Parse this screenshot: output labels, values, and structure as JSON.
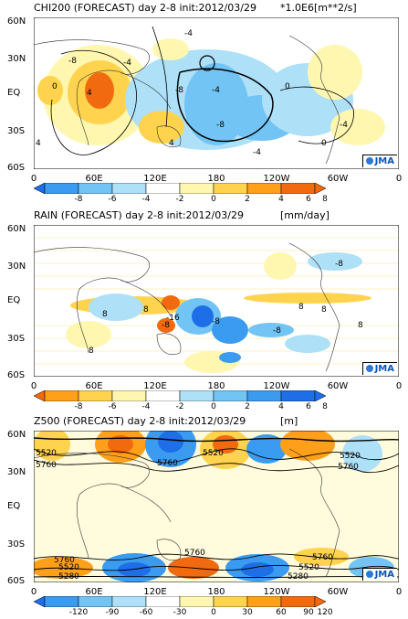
{
  "panels": [
    {
      "title": "CHI200 (FORECAST) day 2-8 init:2012/03/29",
      "units": "*1.0E6[m**2/s]",
      "lat_labels": [
        "60N",
        "30N",
        "EQ",
        "30S",
        "60S"
      ],
      "lon_labels": [
        "0",
        "60E",
        "120E",
        "180",
        "120W",
        "60W",
        "0"
      ],
      "legend_values": [
        "-8",
        "-6",
        "-4",
        "-2",
        "0",
        "2",
        "4",
        "6",
        "8"
      ],
      "legend_colors": [
        "#1e6ee8",
        "#3a9bf0",
        "#72c4f5",
        "#aee0f7",
        "#ffffff",
        "#fff7b0",
        "#ffd34d",
        "#ff9f1a",
        "#f26a0f"
      ],
      "contour_labels": [
        "-8",
        "4",
        "-4",
        "0",
        "-8",
        "-4",
        "4",
        "-8",
        "-4",
        "0",
        "-4",
        "0",
        "4",
        "-4"
      ],
      "logo": "JMA"
    },
    {
      "title": "RAIN (FORECAST) day 2-8 init:2012/03/29",
      "units": "[mm/day]",
      "lat_labels": [
        "60N",
        "30N",
        "EQ",
        "30S",
        "60S"
      ],
      "lon_labels": [
        "0",
        "60E",
        "120E",
        "180",
        "120W",
        "60W",
        "0"
      ],
      "legend_values": [
        "-8",
        "-6",
        "-4",
        "-2",
        "0",
        "2",
        "4",
        "6",
        "8"
      ],
      "legend_colors": [
        "#f26a0f",
        "#ff9f1a",
        "#ffd34d",
        "#fff7b0",
        "#ffffff",
        "#aee0f7",
        "#72c4f5",
        "#3a9bf0",
        "#1e6ee8"
      ],
      "contour_labels": [
        "8",
        "8",
        "-8",
        "-16",
        "-8",
        "-8",
        "8",
        "8",
        "8",
        "-8",
        "8"
      ],
      "logo": "JMA"
    },
    {
      "title": "Z500 (FORECAST) day 2-8 init:2012/03/29",
      "units": "[m]",
      "lat_labels": [
        "60N",
        "30N",
        "EQ",
        "30S",
        "60S"
      ],
      "lon_labels": [
        "0",
        "60E",
        "120E",
        "180",
        "120W",
        "60W",
        "0"
      ],
      "legend_values": [
        "-120",
        "-90",
        "-60",
        "-30",
        "0",
        "30",
        "60",
        "90",
        "120"
      ],
      "legend_colors": [
        "#1e6ee8",
        "#3a9bf0",
        "#72c4f5",
        "#aee0f7",
        "#ffffff",
        "#fff7b0",
        "#ffd34d",
        "#ff9f1a",
        "#f26a0f"
      ],
      "contour_labels": [
        "5520",
        "5760",
        "5520",
        "5760",
        "5520",
        "5760",
        "5760",
        "5760",
        "5520",
        "5280",
        "5280",
        "5520",
        "5760"
      ],
      "logo": "JMA"
    }
  ]
}
